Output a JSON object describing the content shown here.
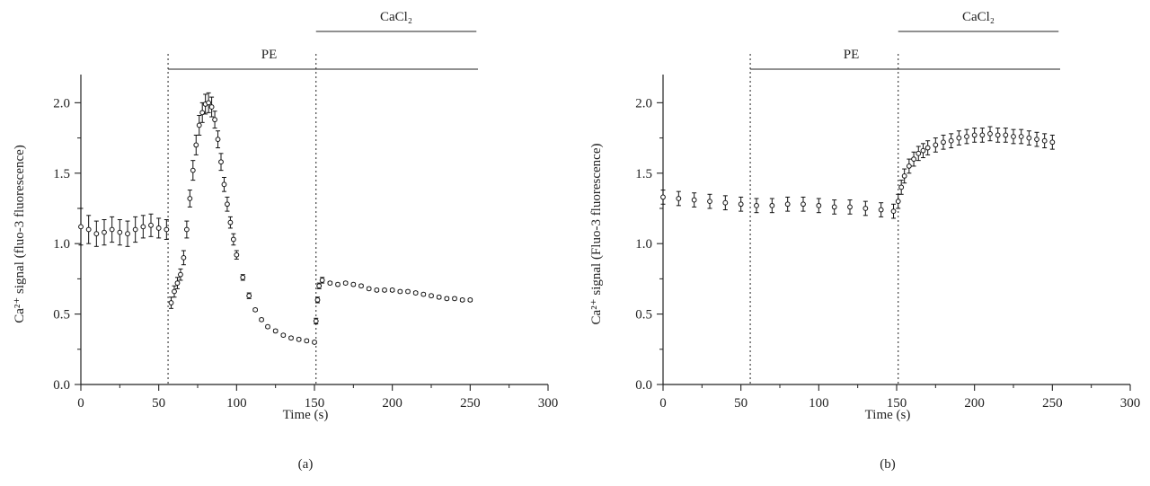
{
  "chart_data": [
    {
      "panel_label": "(a)",
      "type": "scatter",
      "xlabel": "Time (s)",
      "ylabel": "Ca²⁺ signal (fluo-3 fluorescence)",
      "xlim": [
        0,
        300
      ],
      "ylim": [
        0,
        2.2
      ],
      "xticks": [
        "0",
        "50",
        "100",
        "150",
        "200",
        "250",
        "300"
      ],
      "yticks": [
        "0.0",
        "0.5",
        "1.0",
        "1.5",
        "2.0"
      ],
      "grid": false,
      "markers": [
        56,
        151
      ],
      "treatments": [
        {
          "label": "PE",
          "start": 56,
          "end": 255
        },
        {
          "label": "CaCl₂",
          "start": 151,
          "end": 254
        }
      ],
      "series": [
        {
          "x": [
            0,
            5,
            10,
            15,
            20,
            25,
            30,
            35,
            40,
            45,
            50,
            55,
            58,
            60,
            62,
            64,
            66,
            68,
            70,
            72,
            74,
            76,
            78,
            80,
            82,
            84,
            86,
            88,
            90,
            92,
            94,
            96,
            98,
            100,
            104,
            108,
            112,
            116,
            120,
            125,
            130,
            135,
            140,
            145,
            150,
            151,
            152,
            153,
            155,
            160,
            165,
            170,
            175,
            180,
            185,
            190,
            195,
            200,
            205,
            210,
            215,
            220,
            225,
            230,
            235,
            240,
            245,
            250
          ],
          "y": [
            1.12,
            1.1,
            1.07,
            1.08,
            1.1,
            1.08,
            1.07,
            1.1,
            1.12,
            1.13,
            1.11,
            1.1,
            0.58,
            0.66,
            0.72,
            0.78,
            0.9,
            1.1,
            1.32,
            1.52,
            1.7,
            1.84,
            1.93,
            1.99,
            2.0,
            1.97,
            1.88,
            1.74,
            1.58,
            1.42,
            1.28,
            1.15,
            1.03,
            0.92,
            0.76,
            0.63,
            0.53,
            0.46,
            0.41,
            0.38,
            0.35,
            0.33,
            0.32,
            0.31,
            0.3,
            0.45,
            0.6,
            0.7,
            0.74,
            0.72,
            0.71,
            0.72,
            0.71,
            0.7,
            0.68,
            0.67,
            0.67,
            0.67,
            0.66,
            0.66,
            0.65,
            0.64,
            0.63,
            0.62,
            0.61,
            0.61,
            0.6,
            0.6
          ],
          "err": [
            0.13,
            0.1,
            0.09,
            0.09,
            0.09,
            0.09,
            0.09,
            0.09,
            0.08,
            0.08,
            0.07,
            0.07,
            0.04,
            0.04,
            0.04,
            0.04,
            0.05,
            0.06,
            0.06,
            0.07,
            0.07,
            0.07,
            0.07,
            0.07,
            0.07,
            0.07,
            0.06,
            0.06,
            0.06,
            0.05,
            0.05,
            0.04,
            0.04,
            0.03,
            0.02,
            0.02,
            0.01,
            0.01,
            0.01,
            0.01,
            0.01,
            0.01,
            0.01,
            0.01,
            0.01,
            0.02,
            0.02,
            0.02,
            0.02,
            0.01,
            0.01,
            0.01,
            0.01,
            0.01,
            0.01,
            0.01,
            0.01,
            0.01,
            0.01,
            0.01,
            0.01,
            0.01,
            0.01,
            0.01,
            0.01,
            0.01,
            0.01,
            0.01
          ]
        }
      ]
    },
    {
      "panel_label": "(b)",
      "type": "scatter",
      "xlabel": "Time (s)",
      "ylabel": "Ca²⁺ signal (Fluo-3 fluorescence)",
      "xlim": [
        0,
        300
      ],
      "ylim": [
        0,
        2.2
      ],
      "xticks": [
        "0",
        "50",
        "100",
        "150",
        "200",
        "250",
        "300"
      ],
      "yticks": [
        "0.0",
        "0.5",
        "1.0",
        "1.5",
        "2.0"
      ],
      "grid": false,
      "markers": [
        56,
        151
      ],
      "treatments": [
        {
          "label": "PE",
          "start": 56,
          "end": 255
        },
        {
          "label": "CaCl₂",
          "start": 151,
          "end": 254
        }
      ],
      "series": [
        {
          "x": [
            0,
            10,
            20,
            30,
            40,
            50,
            60,
            70,
            80,
            90,
            100,
            110,
            120,
            130,
            140,
            148,
            151,
            153,
            155,
            158,
            161,
            164,
            167,
            170,
            175,
            180,
            185,
            190,
            195,
            200,
            205,
            210,
            215,
            220,
            225,
            230,
            235,
            240,
            245,
            250
          ],
          "y": [
            1.33,
            1.32,
            1.31,
            1.3,
            1.29,
            1.28,
            1.27,
            1.27,
            1.28,
            1.28,
            1.27,
            1.26,
            1.26,
            1.25,
            1.24,
            1.23,
            1.3,
            1.4,
            1.48,
            1.55,
            1.6,
            1.64,
            1.66,
            1.68,
            1.7,
            1.72,
            1.73,
            1.75,
            1.76,
            1.77,
            1.77,
            1.78,
            1.77,
            1.77,
            1.76,
            1.76,
            1.75,
            1.74,
            1.73,
            1.72
          ],
          "err": [
            0.05,
            0.05,
            0.05,
            0.05,
            0.05,
            0.05,
            0.05,
            0.05,
            0.05,
            0.05,
            0.05,
            0.05,
            0.05,
            0.05,
            0.05,
            0.05,
            0.05,
            0.05,
            0.05,
            0.05,
            0.05,
            0.05,
            0.05,
            0.05,
            0.05,
            0.05,
            0.05,
            0.05,
            0.05,
            0.05,
            0.05,
            0.05,
            0.05,
            0.05,
            0.05,
            0.05,
            0.05,
            0.05,
            0.05,
            0.05
          ]
        }
      ]
    }
  ]
}
